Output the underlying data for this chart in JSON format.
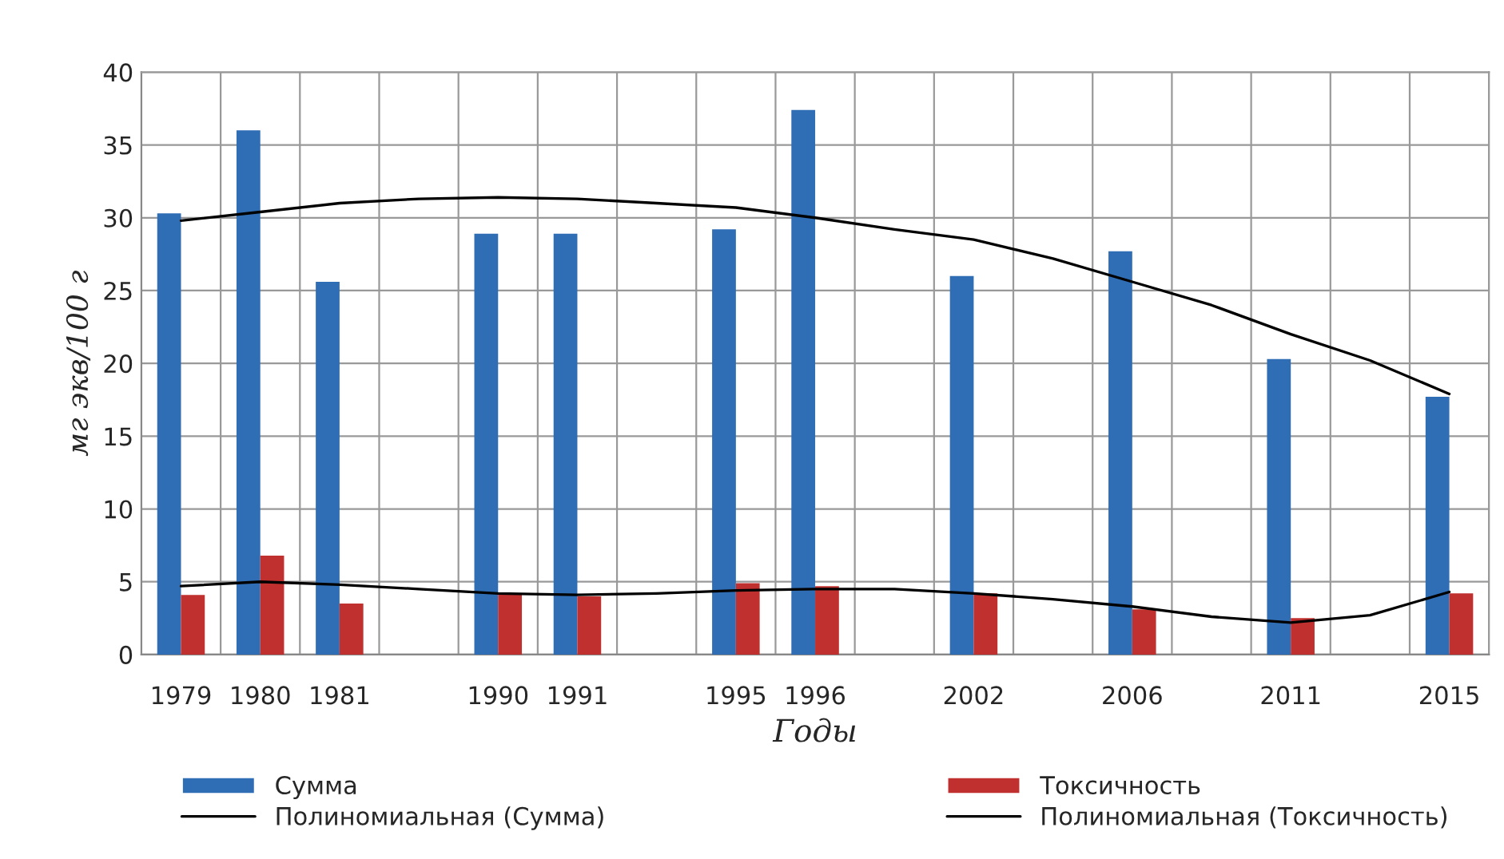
{
  "chart_data": {
    "type": "bar",
    "xlabel": "Годы",
    "ylabel": "мг экв/100 г",
    "categories": [
      "1979",
      "1980",
      "1981",
      null,
      "1990",
      "1991",
      null,
      "1995",
      "1996",
      null,
      "2002",
      null,
      "2006",
      null,
      "2011",
      null,
      "2015"
    ],
    "series": [
      {
        "name": "Сумма",
        "color": "#2f6db5",
        "values": [
          30.3,
          36.0,
          25.6,
          null,
          28.9,
          28.9,
          null,
          29.2,
          37.4,
          null,
          26.0,
          null,
          27.7,
          null,
          20.3,
          null,
          17.7
        ]
      },
      {
        "name": "Токсичность",
        "color": "#c0302e",
        "values": [
          4.1,
          6.8,
          3.5,
          null,
          4.2,
          4.0,
          null,
          4.9,
          4.7,
          null,
          4.2,
          null,
          3.1,
          null,
          2.5,
          null,
          4.2
        ]
      },
      {
        "name": "Полиномиальная (Сумма)",
        "type": "line",
        "color": "#000000",
        "values": [
          29.8,
          30.4,
          31.0,
          31.3,
          31.4,
          31.3,
          31.0,
          30.7,
          30.0,
          29.2,
          28.5,
          27.2,
          25.6,
          24.0,
          22.0,
          20.2,
          17.9
        ]
      },
      {
        "name": "Полиномиальная (Токсичность)",
        "type": "line",
        "color": "#000000",
        "values": [
          4.7,
          5.0,
          4.8,
          4.5,
          4.2,
          4.1,
          4.2,
          4.4,
          4.5,
          4.5,
          4.2,
          3.8,
          3.3,
          2.6,
          2.2,
          2.7,
          4.3
        ]
      }
    ],
    "ylim": [
      0,
      40
    ],
    "yticks": [
      0,
      5,
      10,
      15,
      20,
      25,
      30,
      35,
      40
    ],
    "grid": true,
    "legend": "bottom",
    "marker": "none",
    "line_style": "solid"
  }
}
